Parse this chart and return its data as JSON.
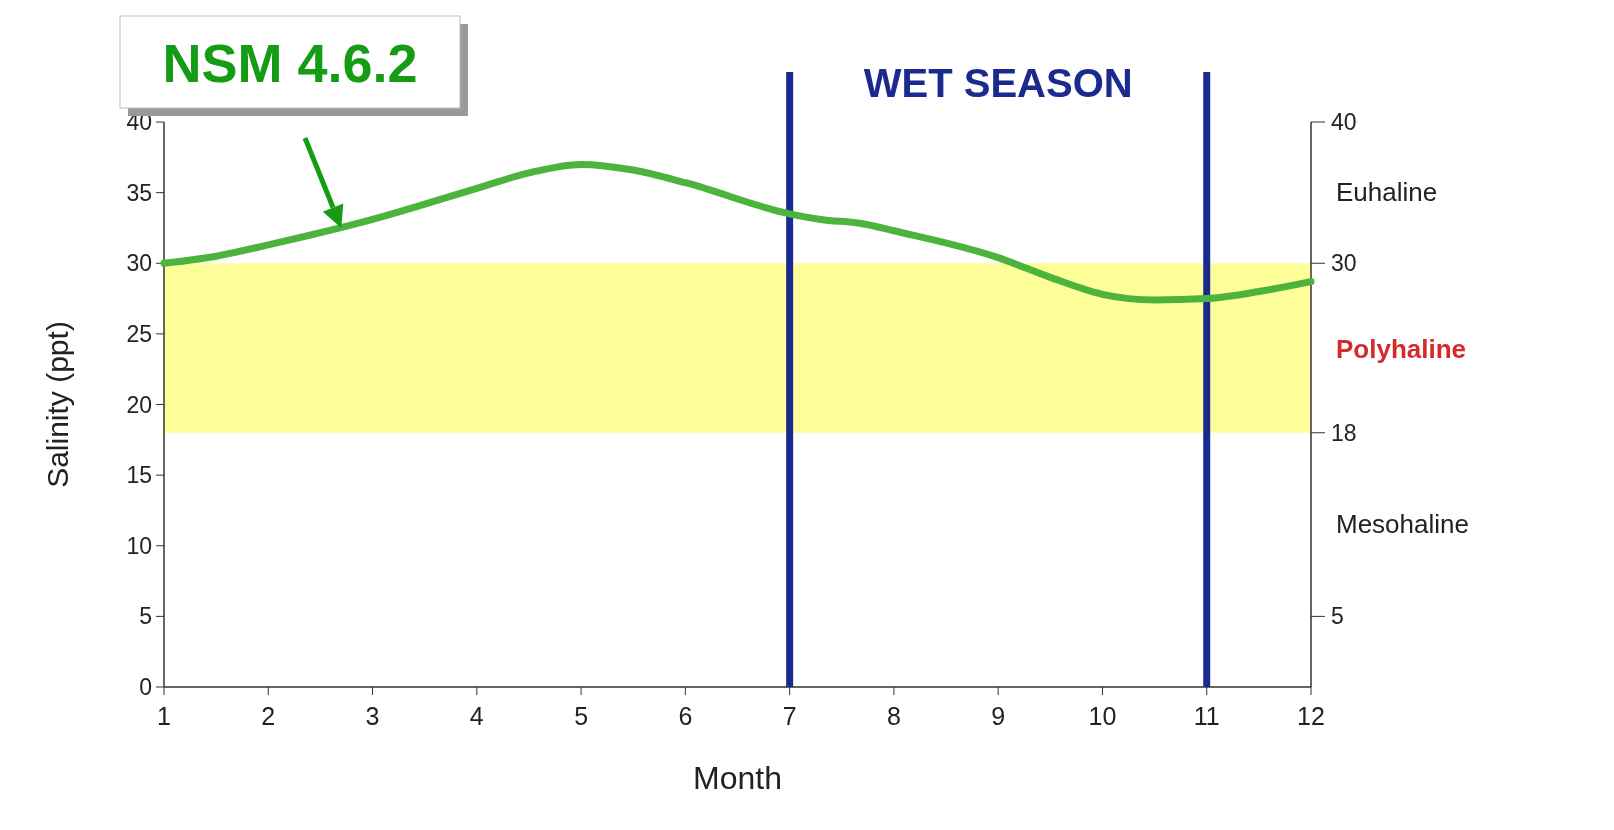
{
  "chart_data": {
    "type": "line",
    "xlabel": "Month",
    "ylabel": "Salinity (ppt)",
    "x": [
      1,
      1.5,
      2,
      3,
      4,
      4.5,
      5,
      5.5,
      6,
      7,
      7.3,
      7.7,
      8,
      9,
      9.5,
      10,
      10.5,
      11,
      11.5,
      12
    ],
    "series": [
      {
        "color": "#4cb33c",
        "values": [
          30.0,
          30.5,
          31.3,
          33.1,
          35.3,
          36.4,
          37.0,
          36.6,
          35.7,
          33.5,
          33.1,
          32.8,
          32.3,
          30.4,
          29.0,
          27.8,
          27.4,
          27.5,
          28.0,
          28.7
        ]
      }
    ],
    "xlim": [
      1,
      12
    ],
    "xticks": [
      1,
      2,
      3,
      4,
      5,
      6,
      7,
      8,
      9,
      10,
      11,
      12
    ],
    "ylim": [
      0,
      40
    ],
    "yticks": [
      0,
      5,
      10,
      15,
      20,
      25,
      30,
      35,
      40
    ],
    "y2lim": [
      0,
      40
    ],
    "y2ticks": [
      40,
      30,
      18,
      5
    ],
    "bands": [
      {
        "axis": "y",
        "from": 18,
        "to": 30,
        "label": "Polyhaline",
        "color": "#ffff99"
      }
    ],
    "ref_lines": [
      {
        "axis": "x",
        "value": 7,
        "color": "#1b2a8f"
      },
      {
        "axis": "x",
        "value": 11,
        "color": "#1b2a8f"
      }
    ],
    "annotations": [
      "WET SEASON",
      "Euhaline",
      "Mesohaline",
      {
        "text": "NSM 4.6.2",
        "x": 2.7,
        "y": 32.5
      }
    ],
    "grid": false,
    "marker": "none",
    "line_style": "solid"
  }
}
